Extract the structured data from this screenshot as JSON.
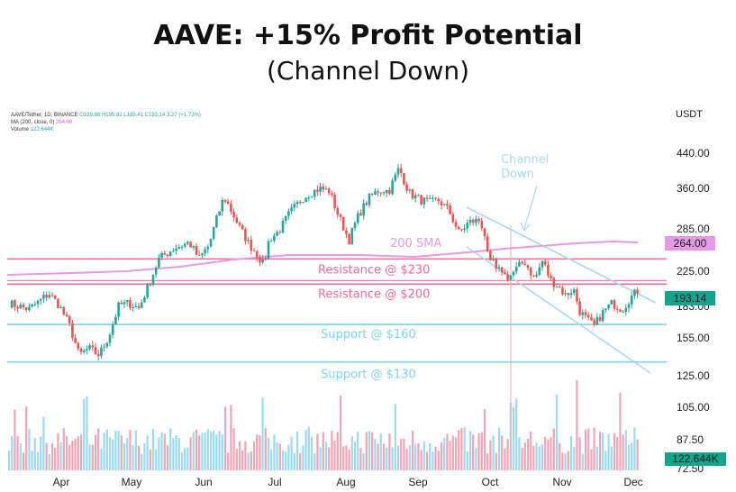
{
  "header": {
    "title": "AAVE: +15% Profit Potential",
    "subtitle": "(Channel Down)"
  },
  "legend": {
    "symbol": "AAVE/Tether, 1D, BINANCE",
    "ohlc": "O189.88 H195.82 L189.41 C193.14 3.27 (+1.72%)",
    "ma": "MA (200, close, 0)",
    "ma_value": "264.00",
    "volume": "Volume",
    "volume_value": "122.644K"
  },
  "currency": "USDT",
  "colors": {
    "up": "#26a69a",
    "down": "#ef5350",
    "sma": "#e49be4",
    "resistance": "#f06c96",
    "support": "#7fd3ef",
    "channel": "#a8d8f0",
    "volume_up": "#9bdaf0",
    "volume_down": "#f2a4b4"
  },
  "chart_data": {
    "type": "candlestick",
    "scale": "log",
    "ylim": [
      72,
      480
    ],
    "price_ticks": [
      "440.00",
      "360.00",
      "285.00",
      "225.00",
      "183.00",
      "155.00",
      "125.00",
      "105.00",
      "87.50",
      "72.50"
    ],
    "months": [
      "Apr",
      "May",
      "Jun",
      "Jul",
      "Aug",
      "Sep",
      "Oct",
      "Nov",
      "Dec"
    ],
    "price_path": [
      [
        0,
        180
      ],
      [
        0.04,
        174
      ],
      [
        0.08,
        190
      ],
      [
        0.1,
        178
      ],
      [
        0.12,
        160
      ],
      [
        0.14,
        135
      ],
      [
        0.16,
        140
      ],
      [
        0.18,
        135
      ],
      [
        0.2,
        150
      ],
      [
        0.22,
        178
      ],
      [
        0.24,
        180
      ],
      [
        0.26,
        175
      ],
      [
        0.28,
        200
      ],
      [
        0.3,
        230
      ],
      [
        0.33,
        244
      ],
      [
        0.36,
        252
      ],
      [
        0.38,
        230
      ],
      [
        0.4,
        248
      ],
      [
        0.43,
        324
      ],
      [
        0.46,
        275
      ],
      [
        0.48,
        250
      ],
      [
        0.5,
        232
      ],
      [
        0.51,
        222
      ],
      [
        0.52,
        256
      ],
      [
        0.54,
        268
      ],
      [
        0.56,
        295
      ],
      [
        0.59,
        325
      ],
      [
        0.62,
        340
      ],
      [
        0.64,
        335
      ],
      [
        0.66,
        290
      ],
      [
        0.68,
        255
      ],
      [
        0.7,
        295
      ],
      [
        0.72,
        322
      ],
      [
        0.74,
        338
      ],
      [
        0.76,
        335
      ],
      [
        0.78,
        380
      ],
      [
        0.8,
        332
      ],
      [
        0.82,
        320
      ],
      [
        0.84,
        314
      ],
      [
        0.86,
        318
      ],
      [
        0.88,
        300
      ],
      [
        0.9,
        265
      ],
      [
        0.92,
        282
      ],
      [
        0.94,
        285
      ],
      [
        0.95,
        270
      ],
      [
        0.96,
        220
      ],
      [
        0.97,
        230
      ],
      [
        0.975,
        212
      ],
      [
        0.985,
        218
      ],
      [
        0.99,
        210
      ],
      [
        1.0,
        208
      ]
    ],
    "price_path_tail": [
      [
        0,
        208
      ],
      [
        0.06,
        218
      ],
      [
        0.12,
        227
      ],
      [
        0.2,
        205
      ],
      [
        0.26,
        228
      ],
      [
        0.32,
        205
      ],
      [
        0.38,
        198
      ],
      [
        0.44,
        188
      ],
      [
        0.5,
        195
      ],
      [
        0.55,
        172
      ],
      [
        0.6,
        165
      ],
      [
        0.66,
        158
      ],
      [
        0.72,
        170
      ],
      [
        0.8,
        180
      ],
      [
        0.88,
        174
      ],
      [
        0.94,
        185
      ],
      [
        1.0,
        193.14
      ]
    ],
    "last_close": "193.14",
    "sma_value": "264.00",
    "volume_label": "122.644K",
    "levels": {
      "resistance": [
        {
          "value": 230,
          "label": "Resistance @ $230"
        },
        {
          "value": 200,
          "label": "Resistance @ $200"
        }
      ],
      "support": [
        {
          "value": 160,
          "label": "Support @ $160"
        },
        {
          "value": 130,
          "label": "Support @ $130"
        }
      ]
    },
    "sma_label": "200 SMA",
    "channel_label_line1": "Channel",
    "channel_label_line2": "Down"
  }
}
